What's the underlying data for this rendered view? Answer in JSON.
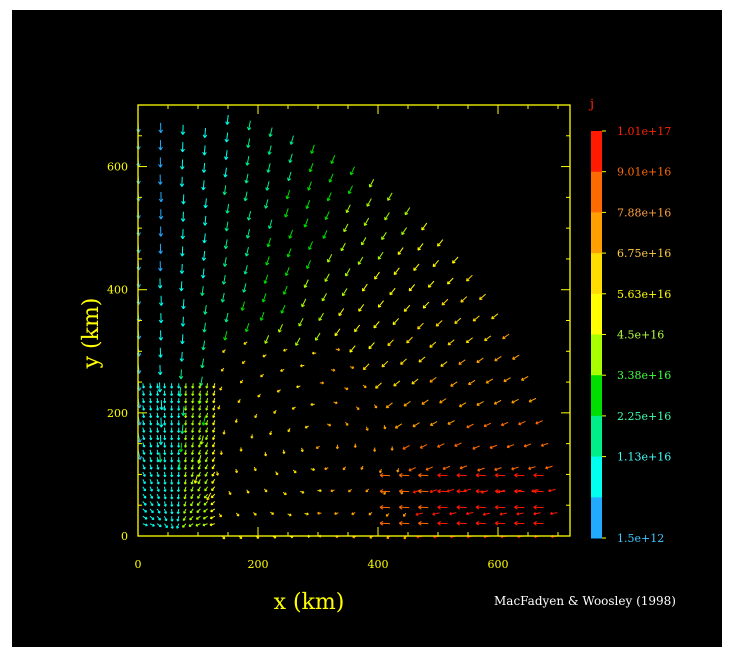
{
  "chart_data": {
    "type": "quiver",
    "xlabel": "x (km)",
    "ylabel": "y (km)",
    "xlim": [
      0,
      720
    ],
    "ylim": [
      0,
      700
    ],
    "x_ticks": [
      0,
      200,
      400,
      600
    ],
    "y_ticks": [
      0,
      200,
      400,
      600
    ],
    "x_tick_labels": [
      "0",
      "200",
      "400",
      "600"
    ],
    "y_tick_labels": [
      "0",
      "200",
      "400",
      "600"
    ],
    "colorbar": {
      "title": "j",
      "labels": [
        "1.01e+17",
        "9.01e+16",
        "7.88e+16",
        "6.75e+16",
        "5.63e+16",
        "4.5e+16",
        "3.38e+16",
        "2.25e+16",
        "1.13e+16",
        "1.5e+12"
      ],
      "colors": [
        "#ff1a00",
        "#ff6a00",
        "#ffa000",
        "#ffdd00",
        "#ffff00",
        "#a8ff00",
        "#00dd00",
        "#00ee88",
        "#00ffee",
        "#22aaff"
      ],
      "label_colors": [
        "#ff2200",
        "#ff6a00",
        "#ffa040",
        "#ffcc44",
        "#ffff00",
        "#b0ff40",
        "#40ff40",
        "#40ffb0",
        "#40ffff",
        "#40c8ff"
      ]
    },
    "annotation": "MacFadyen & Woosley (1998)",
    "description_field": "velocity vectors colored by specific angular momentum j",
    "colors": {
      "axis": "#ffff00",
      "background": "#000000"
    }
  }
}
